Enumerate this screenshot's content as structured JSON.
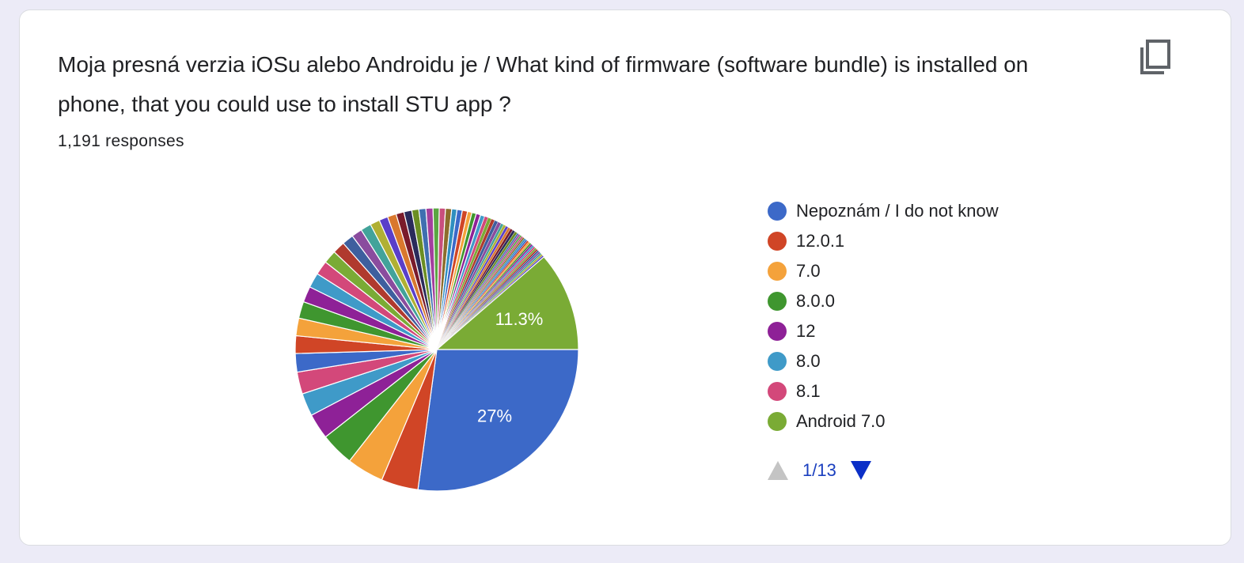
{
  "question": {
    "title": "Moja presná verzia iOSu alebo Androidu je / What kind of firmware (software bundle) is installed on phone, that you could use to install STU app ?",
    "responses": "1,191 responses"
  },
  "icons": {
    "copy": "copy-icon",
    "prev_page": "triangle-up-icon",
    "next_page": "triangle-down-icon"
  },
  "pager": {
    "label": "1/13"
  },
  "chart_data": {
    "type": "pie",
    "total_responses": 1191,
    "legend_position": "right",
    "slices": [
      {
        "label": "Nepoznám / I do not know",
        "percent": 27,
        "color": "#3c69c8"
      },
      {
        "label": "12.0.1",
        "percent": 4.2,
        "color": "#d04526"
      },
      {
        "label": "7.0",
        "percent": 4.2,
        "color": "#f4a23b"
      },
      {
        "label": "8.0.0",
        "percent": 3.8,
        "color": "#3f962f"
      },
      {
        "label": "12",
        "percent": 2.9,
        "color": "#8e2197"
      },
      {
        "label": "8.0",
        "percent": 2.6,
        "color": "#3f9ac8"
      },
      {
        "label": "8.1",
        "percent": 2.5,
        "color": "#d3487a"
      },
      {
        "label": "Android 7.0",
        "percent": 11.3,
        "color": "#7aab35"
      }
    ],
    "slice_labels": [
      {
        "label": "Nepoznám / I do not know",
        "text": "27%"
      },
      {
        "label": "Android 7.0",
        "text": "11.3%"
      }
    ],
    "minor_slice_percents": [
      2.1,
      2.0,
      2.0,
      1.9,
      1.8,
      1.7,
      1.6,
      1.5,
      1.4,
      1.3,
      1.2,
      1.2,
      1.1,
      1.0,
      1.0,
      0.9,
      0.9,
      0.8,
      0.8,
      0.8,
      0.7,
      0.7,
      0.7,
      0.6,
      0.6,
      0.6,
      0.5,
      0.5,
      0.5,
      0.5,
      0.4,
      0.4,
      0.4,
      0.4,
      0.4,
      0.3,
      0.3,
      0.3,
      0.3,
      0.3,
      0.3,
      0.3,
      0.2,
      0.2,
      0.2,
      0.2,
      0.2,
      0.2,
      0.2,
      0.2,
      0.2,
      0.2,
      0.2,
      0.2,
      0.2,
      0.2,
      0.2,
      0.2,
      0.2,
      0.2,
      0.2,
      0.2
    ],
    "minor_slice_colors": [
      "#3c69c8",
      "#d04526",
      "#f4a23b",
      "#3f962f",
      "#8e2197",
      "#3f9ac8",
      "#d3487a",
      "#7aab35",
      "#b03a2e",
      "#3e5f9e",
      "#8a4c9e",
      "#42a39a",
      "#b0b033",
      "#5a3fc9",
      "#d9782e",
      "#7a1b2b",
      "#2a2b5b",
      "#6b8e23",
      "#3f6fb0",
      "#a33f9e",
      "#5aa642",
      "#c94f7d",
      "#8c6d2c",
      "#2f8fbf"
    ]
  }
}
